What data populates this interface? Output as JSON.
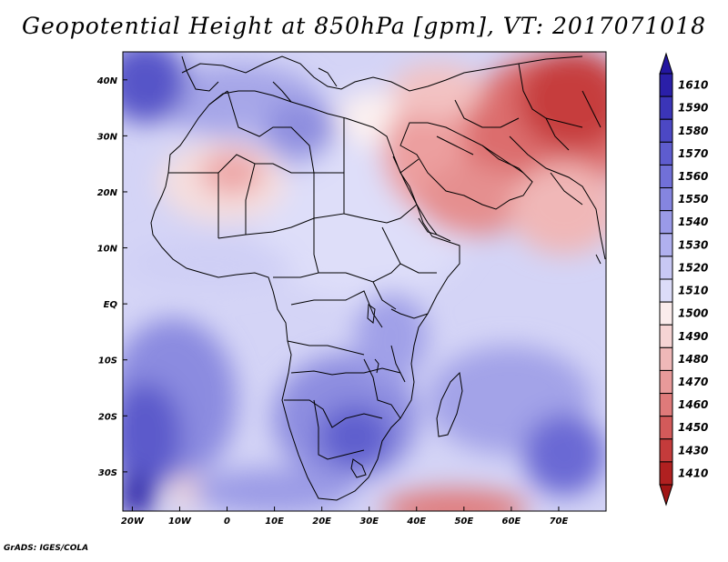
{
  "title": "Geopotential Height at 850hPa [gpm], VT: 2017071018",
  "credit": "GrADS: IGES/COLA",
  "map": {
    "lon_range": [
      -22,
      80
    ],
    "lat_range": [
      -37,
      45
    ],
    "lon_ticks": [
      {
        "lon": -20,
        "label": "20W"
      },
      {
        "lon": -10,
        "label": "10W"
      },
      {
        "lon": 0,
        "label": "0"
      },
      {
        "lon": 10,
        "label": "10E"
      },
      {
        "lon": 20,
        "label": "20E"
      },
      {
        "lon": 30,
        "label": "30E"
      },
      {
        "lon": 40,
        "label": "40E"
      },
      {
        "lon": 50,
        "label": "50E"
      },
      {
        "lon": 60,
        "label": "60E"
      },
      {
        "lon": 70,
        "label": "70E"
      }
    ],
    "lat_ticks": [
      {
        "lat": 40,
        "label": "40N"
      },
      {
        "lat": 30,
        "label": "30N"
      },
      {
        "lat": 20,
        "label": "20N"
      },
      {
        "lat": 10,
        "label": "10N"
      },
      {
        "lat": 0,
        "label": "EQ"
      },
      {
        "lat": -10,
        "label": "10S"
      },
      {
        "lat": -20,
        "label": "20S"
      },
      {
        "lat": -30,
        "label": "30S"
      }
    ]
  },
  "colorbar": {
    "labels": [
      "1610",
      "1590",
      "1580",
      "1570",
      "1560",
      "1550",
      "1540",
      "1530",
      "1520",
      "1510",
      "1500",
      "1490",
      "1480",
      "1470",
      "1460",
      "1450",
      "1430",
      "1410"
    ],
    "colors": [
      "#2a1fa8",
      "#3b35b8",
      "#4c48c4",
      "#5e5ccf",
      "#7170d8",
      "#8585e0",
      "#9a9ae8",
      "#b0b0ef",
      "#c8c8f4",
      "#dcdcf8",
      "#fbecec",
      "#f6d4d4",
      "#efb8b8",
      "#e89a9a",
      "#df7a7a",
      "#d35a5a",
      "#c43b3b",
      "#b02020"
    ],
    "min_arrow_color": "#a01515",
    "max_arrow_color": "#2316a0"
  }
}
